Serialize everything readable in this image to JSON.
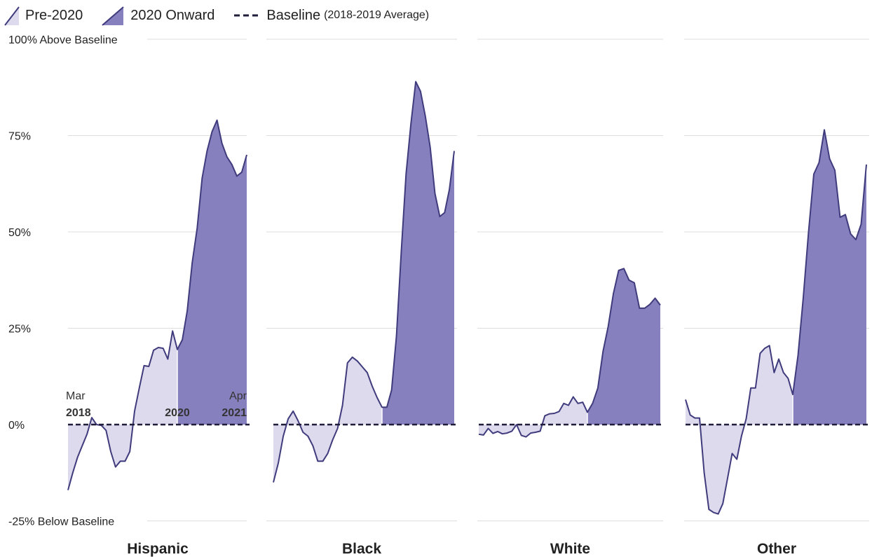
{
  "legend": {
    "pre": "Pre-2020",
    "post": "2020 Onward",
    "baseline_main": "Baseline",
    "baseline_note": "(2018-2019 Average)"
  },
  "colors": {
    "pre_fill": "#dcdaec",
    "post_fill": "#8780bf",
    "line": "#3f3b7c",
    "baseline": "#1f1d3a",
    "grid": "#dddddd"
  },
  "annotations": [
    {
      "month": "Mar",
      "year": "2018"
    },
    {
      "month": "",
      "year": "2020"
    },
    {
      "month": "Apr",
      "year": "2021"
    }
  ],
  "chart_data": {
    "type": "area",
    "y_axis": {
      "min": -25,
      "max": 100,
      "ticks": [
        {
          "value": 100,
          "label": "100% Above Baseline"
        },
        {
          "value": 75,
          "label": "75%"
        },
        {
          "value": 50,
          "label": "50%"
        },
        {
          "value": 25,
          "label": "25%"
        },
        {
          "value": 0,
          "label": "0%"
        },
        {
          "value": -25,
          "label": "-25% Below Baseline"
        }
      ]
    },
    "x_range": [
      "Mar 2018",
      "Apr 2021"
    ],
    "split": "2020",
    "baseline": 0,
    "grid": true,
    "legend_position": "top-left",
    "series": [
      {
        "name": "Hispanic",
        "pre": [
          -17,
          -12.5,
          -8.5,
          -5.5,
          -2.5,
          1.8,
          0,
          -0.2,
          -1.5,
          -7,
          -11,
          -9.5,
          -9.5,
          -7,
          3.5,
          9.5,
          15.3,
          15.1,
          19.3,
          20,
          19.8,
          17,
          24.3,
          19.5
        ],
        "post": [
          19.5,
          22,
          29.5,
          42,
          51,
          64,
          71,
          76,
          79,
          73,
          69.5,
          67.5,
          64.5,
          65.5,
          70
        ]
      },
      {
        "name": "Black",
        "pre": [
          -15,
          -10,
          -3,
          1.5,
          3.5,
          1,
          -2,
          -3,
          -5.5,
          -9.5,
          -9.5,
          -7.5,
          -4,
          -1,
          5,
          16,
          17.5,
          16.5,
          15,
          13.5,
          10,
          7,
          4.5
        ],
        "post": [
          4.5,
          4.5,
          9,
          23,
          45,
          65,
          78,
          89,
          86.5,
          80,
          72,
          60,
          54,
          55,
          61,
          71
        ]
      },
      {
        "name": "White",
        "pre": [
          -2.5,
          -2.7,
          -1,
          -2.3,
          -1.8,
          -2.4,
          -2.2,
          -1.7,
          0,
          -2.8,
          -3.2,
          -2.2,
          -2,
          -1.7,
          2.3,
          2.8,
          2.9,
          3.4,
          5.5,
          5,
          7.2,
          5.5,
          5.8,
          3.2
        ],
        "post": [
          3.2,
          5.5,
          9.5,
          19,
          25.5,
          34,
          40,
          40.5,
          37.5,
          36.8,
          30.2,
          30.2,
          31.2,
          32.8,
          31
        ]
      },
      {
        "name": "Other",
        "pre": [
          6.5,
          2.5,
          1.7,
          1.7,
          -12.5,
          -22,
          -22.8,
          -23.2,
          -20.5,
          -14,
          -7.5,
          -9,
          -3,
          1.5,
          9.5,
          9.5,
          18.5,
          19.8,
          20.5,
          13.5,
          17,
          13.5,
          12,
          7.8
        ],
        "post": [
          7.8,
          18,
          33,
          50,
          65,
          68,
          76.5,
          69,
          66,
          53.8,
          54.5,
          49.5,
          48,
          52,
          67.5
        ]
      }
    ]
  }
}
